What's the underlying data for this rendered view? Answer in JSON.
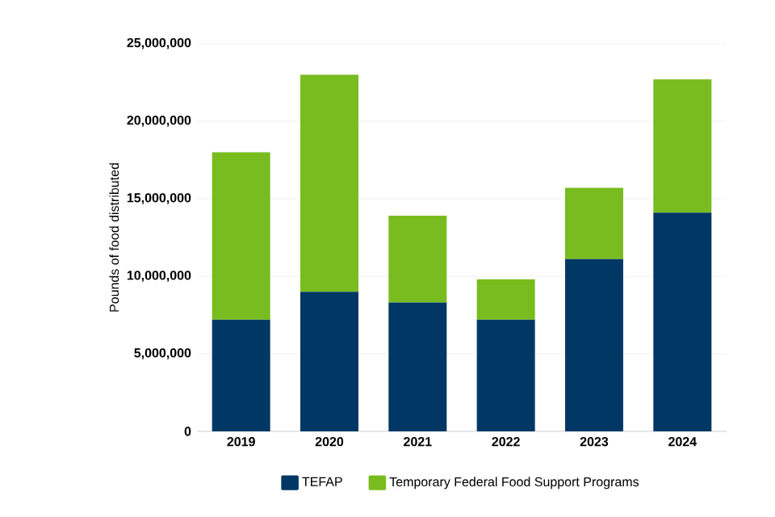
{
  "chart_data": {
    "type": "bar",
    "stacked": true,
    "ylabel": "Pounds of food distributed",
    "categories": [
      "2019",
      "2020",
      "2021",
      "2022",
      "2023",
      "2024"
    ],
    "series": [
      {
        "name": "TEFAP",
        "color": "#003764",
        "values": [
          7200000,
          9000000,
          8300000,
          7200000,
          11100000,
          14100000
        ]
      },
      {
        "name": "Temporary Federal Food Support Programs",
        "color": "#78bc20",
        "values": [
          10800000,
          14000000,
          5600000,
          2600000,
          4600000,
          8600000
        ]
      }
    ],
    "ylim": [
      0,
      25000000
    ],
    "yticks": [
      {
        "value": 0,
        "label": "0"
      },
      {
        "value": 5000000,
        "label": "5,000,000"
      },
      {
        "value": 10000000,
        "label": "10,000,000"
      },
      {
        "value": 15000000,
        "label": "15,000,000"
      },
      {
        "value": 20000000,
        "label": "20,000,000"
      },
      {
        "value": 25000000,
        "label": "25,000,000"
      }
    ],
    "grid": "y",
    "legend": "bottom"
  }
}
